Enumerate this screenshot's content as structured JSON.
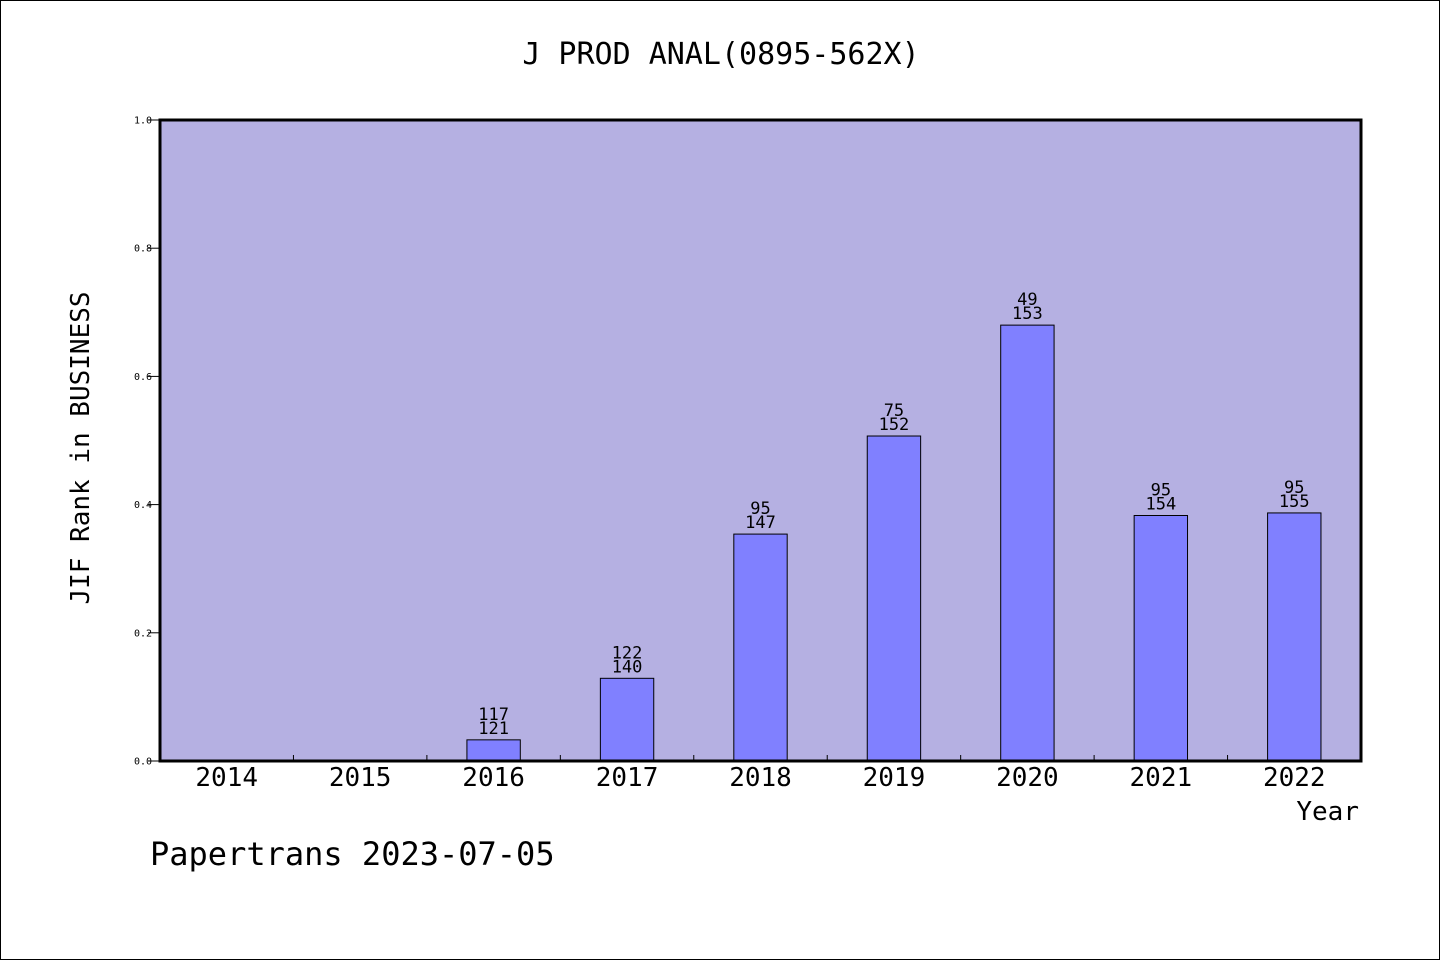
{
  "chart_data": {
    "type": "bar",
    "title": "J PROD ANAL(0895-562X)",
    "xlabel": "Year",
    "ylabel": "JIF Rank in BUSINESS",
    "ylim": [
      0,
      1.0
    ],
    "yticks": [
      "0.0",
      "0.2",
      "0.4",
      "0.6",
      "0.8",
      "1.0"
    ],
    "grid": false,
    "categories": [
      "2014",
      "2015",
      "2016",
      "2017",
      "2018",
      "2019",
      "2020",
      "2021",
      "2022"
    ],
    "values": [
      null,
      null,
      0.033,
      0.129,
      0.354,
      0.507,
      0.68,
      0.383,
      0.387
    ],
    "rank_labels": [
      "",
      "",
      "117",
      "122",
      "95",
      "75",
      "49",
      "95",
      "95"
    ],
    "total_labels": [
      "",
      "",
      "121",
      "140",
      "147",
      "152",
      "153",
      "154",
      "155"
    ],
    "colors": {
      "background": "#b5b0e2",
      "bar": "#8080ff"
    }
  },
  "footer": {
    "credit": "Papertrans 2023-07-05"
  }
}
